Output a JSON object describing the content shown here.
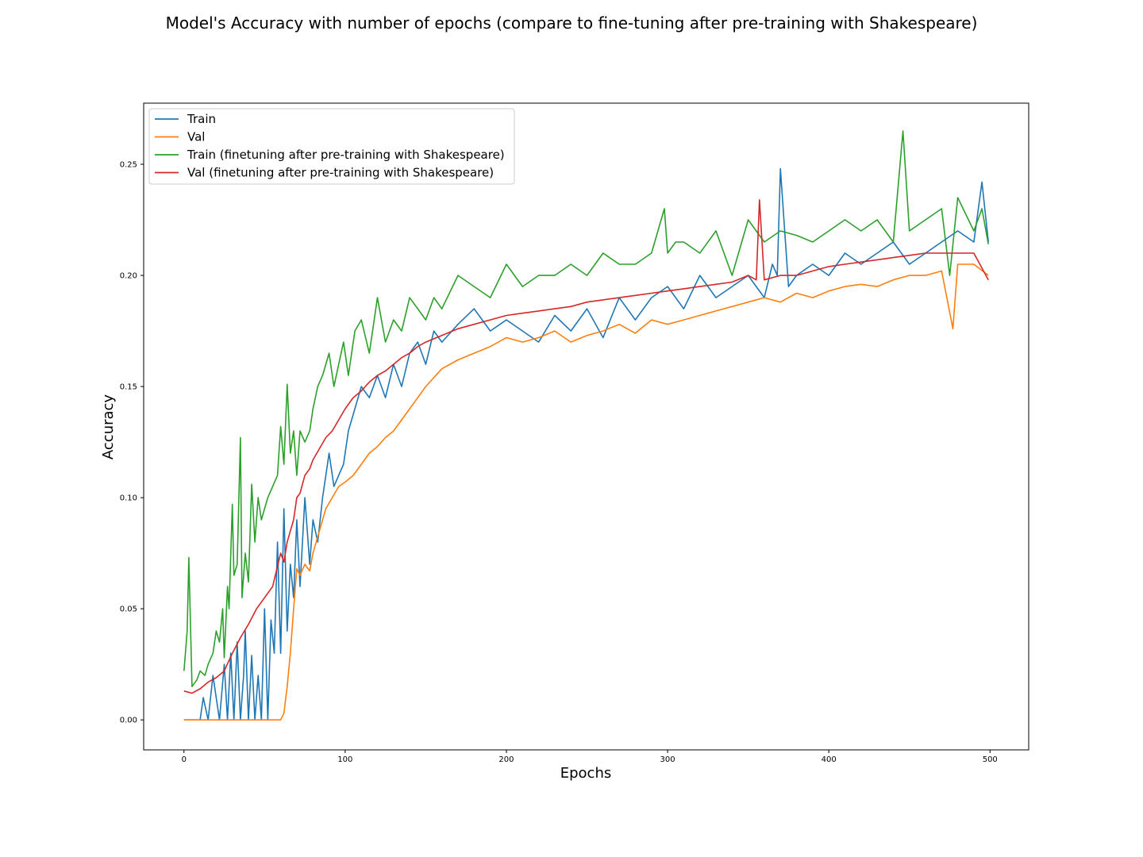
{
  "chart_data": {
    "type": "line",
    "title": "Model's Accuracy with number of epochs (compare to fine-tuning after pre-training with Shakespeare)",
    "xlabel": "Epochs",
    "ylabel": "Accuracy",
    "xlim": [
      -25,
      524
    ],
    "ylim": [
      -0.0135,
      0.2775
    ],
    "xticks": [
      0,
      100,
      200,
      300,
      400,
      500
    ],
    "yticks": [
      0.0,
      0.05,
      0.1,
      0.15,
      0.2,
      0.25
    ],
    "xtick_labels": [
      "0",
      "100",
      "200",
      "300",
      "400",
      "500"
    ],
    "ytick_labels": [
      "0.00",
      "0.05",
      "0.10",
      "0.15",
      "0.20",
      "0.25"
    ],
    "grid": false,
    "legend_position": "upper-left",
    "series": [
      {
        "name": "Train",
        "color": "#1f77b4",
        "x": [
          0,
          5,
          10,
          12,
          15,
          18,
          22,
          25,
          27,
          29,
          31,
          33,
          35,
          37,
          38,
          40,
          42,
          44,
          46,
          48,
          50,
          52,
          54,
          56,
          58,
          60,
          62,
          64,
          66,
          68,
          70,
          72,
          75,
          78,
          80,
          83,
          86,
          88,
          90,
          93,
          96,
          99,
          102,
          106,
          110,
          115,
          120,
          125,
          130,
          135,
          140,
          145,
          150,
          155,
          160,
          170,
          180,
          190,
          200,
          210,
          220,
          230,
          240,
          250,
          260,
          270,
          280,
          290,
          300,
          310,
          320,
          330,
          340,
          350,
          360,
          365,
          368,
          370,
          375,
          380,
          390,
          400,
          410,
          420,
          430,
          440,
          450,
          460,
          470,
          480,
          490,
          495,
          499
        ],
        "y": [
          0.0,
          0.0,
          0.0,
          0.01,
          0.0,
          0.02,
          0.0,
          0.025,
          0.0,
          0.03,
          0.0,
          0.035,
          0.0,
          0.02,
          0.04,
          0.0,
          0.029,
          0.0,
          0.02,
          0.0,
          0.05,
          0.0,
          0.045,
          0.03,
          0.08,
          0.03,
          0.095,
          0.04,
          0.07,
          0.055,
          0.09,
          0.06,
          0.1,
          0.07,
          0.09,
          0.08,
          0.1,
          0.11,
          0.12,
          0.105,
          0.11,
          0.115,
          0.13,
          0.14,
          0.15,
          0.145,
          0.155,
          0.145,
          0.16,
          0.15,
          0.165,
          0.17,
          0.16,
          0.175,
          0.17,
          0.178,
          0.185,
          0.175,
          0.18,
          0.175,
          0.17,
          0.182,
          0.175,
          0.185,
          0.172,
          0.19,
          0.18,
          0.19,
          0.195,
          0.185,
          0.2,
          0.19,
          0.195,
          0.2,
          0.19,
          0.205,
          0.2,
          0.248,
          0.195,
          0.2,
          0.205,
          0.2,
          0.21,
          0.205,
          0.21,
          0.215,
          0.205,
          0.21,
          0.215,
          0.22,
          0.215,
          0.242,
          0.215
        ]
      },
      {
        "name": "Val",
        "color": "#ff7f0e",
        "x": [
          0,
          10,
          20,
          30,
          40,
          50,
          58,
          60,
          62,
          64,
          66,
          68,
          70,
          72,
          75,
          78,
          80,
          84,
          88,
          92,
          96,
          100,
          105,
          110,
          115,
          120,
          125,
          130,
          135,
          140,
          145,
          150,
          160,
          170,
          180,
          190,
          200,
          210,
          220,
          230,
          240,
          250,
          260,
          270,
          280,
          290,
          300,
          310,
          320,
          330,
          340,
          350,
          360,
          370,
          380,
          390,
          400,
          410,
          420,
          430,
          440,
          450,
          460,
          470,
          477,
          480,
          490,
          499
        ],
        "y": [
          0.0,
          0.0,
          0.0,
          0.0,
          0.0,
          0.0,
          0.0,
          0.0,
          0.003,
          0.015,
          0.03,
          0.05,
          0.068,
          0.065,
          0.07,
          0.067,
          0.075,
          0.085,
          0.095,
          0.1,
          0.105,
          0.107,
          0.11,
          0.115,
          0.12,
          0.123,
          0.127,
          0.13,
          0.135,
          0.14,
          0.145,
          0.15,
          0.158,
          0.162,
          0.165,
          0.168,
          0.172,
          0.17,
          0.172,
          0.175,
          0.17,
          0.173,
          0.175,
          0.178,
          0.174,
          0.18,
          0.178,
          0.18,
          0.182,
          0.184,
          0.186,
          0.188,
          0.19,
          0.188,
          0.192,
          0.19,
          0.193,
          0.195,
          0.196,
          0.195,
          0.198,
          0.2,
          0.2,
          0.202,
          0.176,
          0.205,
          0.205,
          0.2
        ]
      },
      {
        "name": "Train (finetuning after pre-training with Shakespeare)",
        "color": "#2ca02c",
        "x": [
          0,
          2,
          3,
          5,
          8,
          10,
          13,
          15,
          18,
          20,
          22,
          24,
          25,
          27,
          28,
          30,
          31,
          33,
          35,
          36,
          38,
          40,
          42,
          44,
          46,
          48,
          50,
          52,
          55,
          58,
          60,
          62,
          64,
          66,
          68,
          70,
          72,
          75,
          78,
          80,
          83,
          86,
          88,
          90,
          93,
          96,
          99,
          102,
          106,
          110,
          115,
          120,
          125,
          130,
          135,
          140,
          145,
          150,
          155,
          160,
          170,
          180,
          190,
          200,
          210,
          220,
          230,
          240,
          250,
          260,
          270,
          280,
          290,
          298,
          300,
          305,
          310,
          320,
          330,
          340,
          350,
          360,
          370,
          380,
          390,
          400,
          410,
          420,
          430,
          440,
          446,
          450,
          460,
          470,
          475,
          480,
          490,
          495,
          499
        ],
        "y": [
          0.022,
          0.04,
          0.073,
          0.015,
          0.018,
          0.022,
          0.02,
          0.025,
          0.03,
          0.04,
          0.035,
          0.05,
          0.028,
          0.06,
          0.05,
          0.097,
          0.065,
          0.07,
          0.127,
          0.055,
          0.075,
          0.062,
          0.106,
          0.08,
          0.1,
          0.09,
          0.095,
          0.1,
          0.105,
          0.11,
          0.132,
          0.115,
          0.151,
          0.12,
          0.13,
          0.11,
          0.13,
          0.125,
          0.13,
          0.14,
          0.15,
          0.155,
          0.16,
          0.165,
          0.15,
          0.16,
          0.17,
          0.155,
          0.175,
          0.18,
          0.165,
          0.19,
          0.17,
          0.18,
          0.175,
          0.19,
          0.185,
          0.18,
          0.19,
          0.185,
          0.2,
          0.195,
          0.19,
          0.205,
          0.195,
          0.2,
          0.2,
          0.205,
          0.2,
          0.21,
          0.205,
          0.205,
          0.21,
          0.23,
          0.21,
          0.215,
          0.215,
          0.21,
          0.22,
          0.2,
          0.225,
          0.215,
          0.22,
          0.218,
          0.215,
          0.22,
          0.225,
          0.22,
          0.225,
          0.215,
          0.265,
          0.22,
          0.225,
          0.23,
          0.2,
          0.235,
          0.22,
          0.23,
          0.214
        ]
      },
      {
        "name": "Val (finetuning after pre-training with Shakespeare)",
        "color": "#d62728",
        "x": [
          0,
          5,
          10,
          15,
          20,
          25,
          30,
          35,
          40,
          45,
          50,
          55,
          60,
          62,
          64,
          66,
          68,
          70,
          72,
          75,
          78,
          80,
          84,
          88,
          92,
          96,
          100,
          105,
          110,
          115,
          120,
          125,
          130,
          135,
          140,
          145,
          150,
          160,
          170,
          180,
          190,
          200,
          210,
          220,
          230,
          240,
          250,
          260,
          270,
          280,
          290,
          300,
          310,
          320,
          330,
          340,
          350,
          355,
          357,
          360,
          370,
          380,
          390,
          400,
          410,
          420,
          430,
          440,
          450,
          460,
          470,
          480,
          490,
          499
        ],
        "y": [
          0.013,
          0.012,
          0.014,
          0.017,
          0.019,
          0.022,
          0.03,
          0.037,
          0.043,
          0.05,
          0.055,
          0.06,
          0.075,
          0.071,
          0.08,
          0.085,
          0.09,
          0.1,
          0.102,
          0.11,
          0.113,
          0.117,
          0.122,
          0.127,
          0.13,
          0.135,
          0.14,
          0.145,
          0.148,
          0.152,
          0.155,
          0.157,
          0.16,
          0.163,
          0.165,
          0.168,
          0.17,
          0.173,
          0.176,
          0.178,
          0.18,
          0.182,
          0.183,
          0.184,
          0.185,
          0.186,
          0.188,
          0.189,
          0.19,
          0.191,
          0.192,
          0.193,
          0.194,
          0.195,
          0.196,
          0.197,
          0.2,
          0.198,
          0.234,
          0.198,
          0.2,
          0.2,
          0.202,
          0.204,
          0.205,
          0.206,
          0.207,
          0.208,
          0.209,
          0.21,
          0.21,
          0.21,
          0.21,
          0.198
        ]
      }
    ]
  }
}
